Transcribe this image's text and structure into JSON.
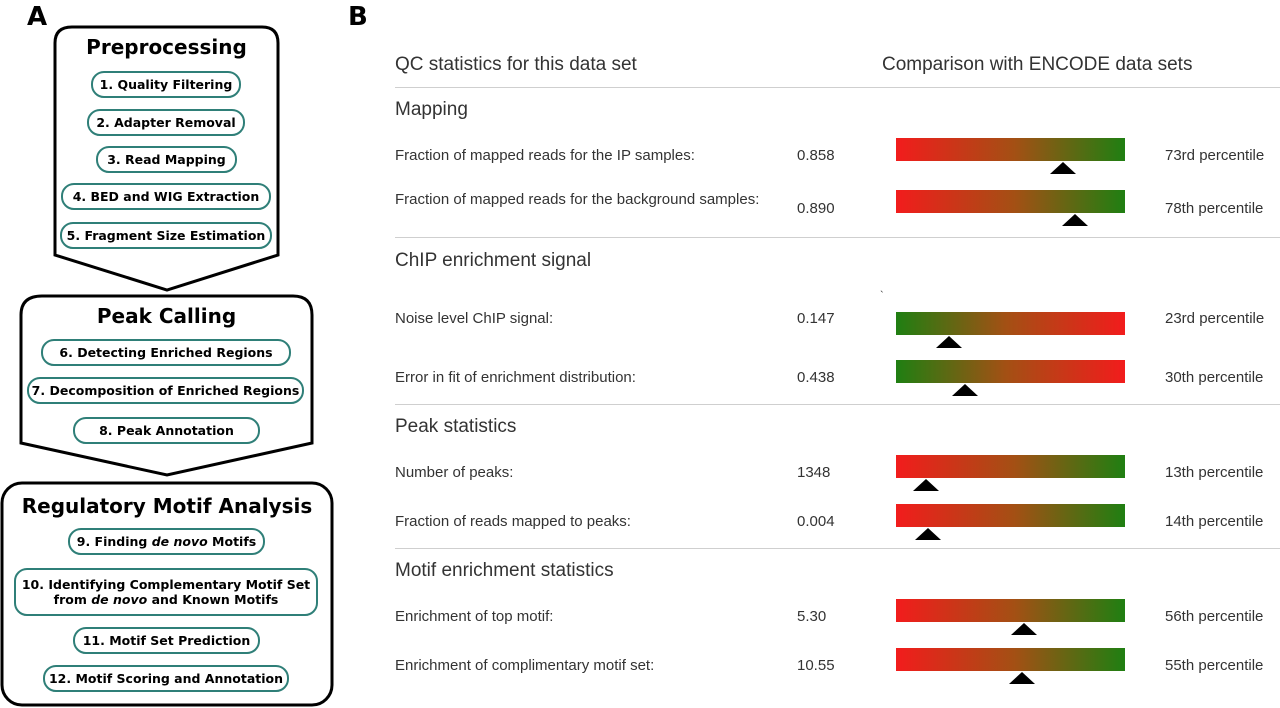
{
  "panel_a": {
    "letter": "A",
    "stages": [
      {
        "title": "Preprocessing",
        "steps": [
          {
            "text": "1. Quality Filtering"
          },
          {
            "text": "2. Adapter Removal"
          },
          {
            "text": "3. Read Mapping"
          },
          {
            "text": "4. BED and WIG Extraction"
          },
          {
            "text": "5. Fragment Size Estimation"
          }
        ]
      },
      {
        "title": "Peak Calling",
        "steps": [
          {
            "text": "6. Detecting Enriched Regions"
          },
          {
            "text": "7. Decomposition of Enriched Regions"
          },
          {
            "text": "8. Peak Annotation"
          }
        ]
      },
      {
        "title": "Regulatory Motif Analysis",
        "steps": [
          {
            "pre": "9. Finding ",
            "em": "de novo",
            "post": " Motifs"
          },
          {
            "line1": "10. Identifying Complementary Motif Set",
            "pre": "from ",
            "em": "de novo",
            "post": " and Known Motifs"
          },
          {
            "text": "11. Motif Set Prediction"
          },
          {
            "text": "12. Motif Scoring and Annotation"
          }
        ]
      }
    ]
  },
  "panel_b": {
    "letter": "B",
    "header_left": "QC statistics for this data set",
    "header_right": "Comparison with ENCODE data sets",
    "stray_mark": "`",
    "sections": [
      {
        "title": "Mapping",
        "rows": [
          {
            "label": "Fraction of mapped reads for the IP samples:",
            "value": "0.858",
            "percentile": 73,
            "percentile_text": "73rd percentile",
            "gradient": "red-to-green"
          },
          {
            "label": "Fraction of mapped reads for the background samples:",
            "value": "0.890",
            "percentile": 78,
            "percentile_text": "78th percentile",
            "gradient": "red-to-green"
          }
        ]
      },
      {
        "title": "ChIP enrichment signal",
        "rows": [
          {
            "label": "Noise level ChIP signal:",
            "value": "0.147",
            "percentile": 23,
            "percentile_text": "23rd percentile",
            "gradient": "green-to-red"
          },
          {
            "label": "Error in fit of enrichment distribution:",
            "value": "0.438",
            "percentile": 30,
            "percentile_text": "30th percentile",
            "gradient": "green-to-red"
          }
        ]
      },
      {
        "title": "Peak statistics",
        "rows": [
          {
            "label": "Number of peaks:",
            "value": "1348",
            "percentile": 13,
            "percentile_text": "13th percentile",
            "gradient": "red-to-green"
          },
          {
            "label": "Fraction of reads mapped to peaks:",
            "value": "0.004",
            "percentile": 14,
            "percentile_text": "14th percentile",
            "gradient": "red-to-green"
          }
        ]
      },
      {
        "title": "Motif enrichment statistics",
        "rows": [
          {
            "label": "Enrichment of top motif:",
            "value": "5.30",
            "percentile": 56,
            "percentile_text": "56th percentile",
            "gradient": "red-to-green"
          },
          {
            "label": "Enrichment of complimentary motif set:",
            "value": "10.55",
            "percentile": 55,
            "percentile_text": "55th percentile",
            "gradient": "red-to-green"
          }
        ]
      }
    ]
  }
}
